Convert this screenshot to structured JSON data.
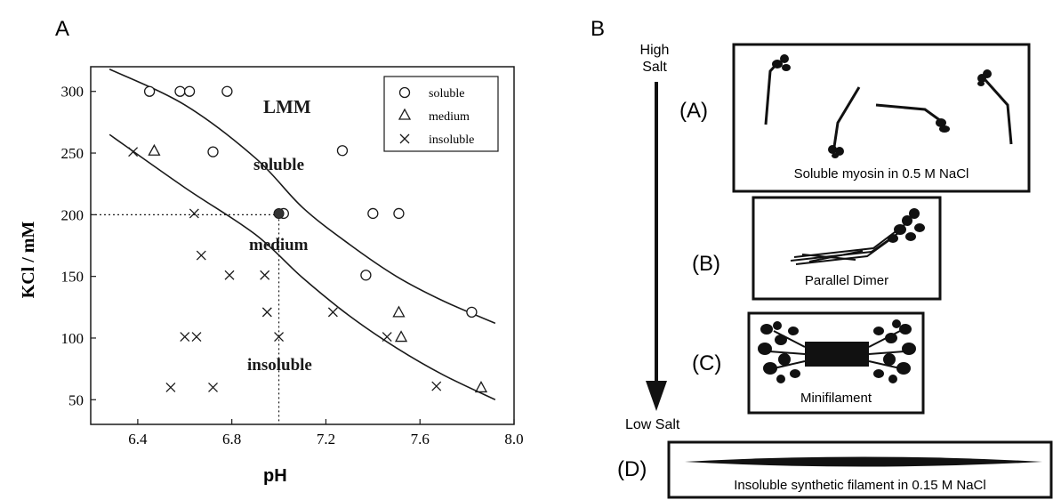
{
  "panel_a": {
    "label": "A",
    "xlabel": "pH",
    "ylabel": "KCl / mM",
    "region_labels": [
      "LMM",
      "soluble",
      "medium",
      "insoluble"
    ],
    "legend": [
      "soluble",
      "medium",
      "insoluble"
    ]
  },
  "panel_b": {
    "label": "B",
    "high_salt_line1": "High",
    "high_salt_line2": "Salt",
    "low_salt": "Low Salt",
    "states": [
      {
        "tag": "(A)",
        "caption": "Soluble myosin in 0.5 M NaCl"
      },
      {
        "tag": "(B)",
        "caption": "Parallel Dimer"
      },
      {
        "tag": "(C)",
        "caption": "Minifilament"
      },
      {
        "tag": "(D)",
        "caption": "Insoluble synthetic filament in 0.15 M NaCl"
      }
    ]
  },
  "chart_data": {
    "type": "scatter",
    "xlim": [
      6.2,
      8.0
    ],
    "ylim": [
      30,
      320
    ],
    "x_ticks": [
      "6.4",
      "6.8",
      "7.2",
      "7.6",
      "8.0"
    ],
    "y_ticks": [
      "50",
      "100",
      "150",
      "200",
      "250",
      "300"
    ],
    "series": [
      {
        "name": "soluble",
        "marker": "circle",
        "x": [
          6.45,
          6.58,
          6.62,
          6.72,
          6.78,
          7.02,
          7.27,
          7.37,
          7.4,
          7.51,
          7.82
        ],
        "y": [
          300,
          300,
          300,
          251,
          300,
          201,
          252,
          151,
          201,
          201,
          121
        ]
      },
      {
        "name": "medium",
        "marker": "triangle",
        "x": [
          6.47,
          7.51,
          7.52,
          7.86
        ],
        "y": [
          252,
          121,
          101,
          60
        ]
      },
      {
        "name": "insoluble",
        "marker": "cross",
        "x": [
          6.38,
          6.54,
          6.6,
          6.64,
          6.65,
          6.67,
          6.72,
          6.79,
          6.94,
          6.95,
          7.0,
          7.23,
          7.46,
          7.67
        ],
        "y": [
          251,
          60,
          101,
          201,
          101,
          167,
          60,
          151,
          151,
          121,
          101,
          121,
          101,
          61
        ]
      },
      {
        "name": "point",
        "marker": "filled-circle",
        "x": [
          7.0
        ],
        "y": [
          201
        ]
      }
    ],
    "boundaries": [
      {
        "x": [
          6.28,
          6.6,
          6.9,
          7.1,
          7.3,
          7.5,
          7.7,
          7.92
        ],
        "y": [
          318,
          289,
          246,
          206,
          176,
          150,
          130,
          112
        ]
      },
      {
        "x": [
          6.28,
          6.6,
          6.9,
          7.1,
          7.3,
          7.5,
          7.7,
          7.92
        ],
        "y": [
          265,
          222,
          184,
          149,
          118,
          92,
          70,
          50
        ]
      }
    ],
    "reference_point": {
      "x": 7.0,
      "y": 200
    }
  }
}
